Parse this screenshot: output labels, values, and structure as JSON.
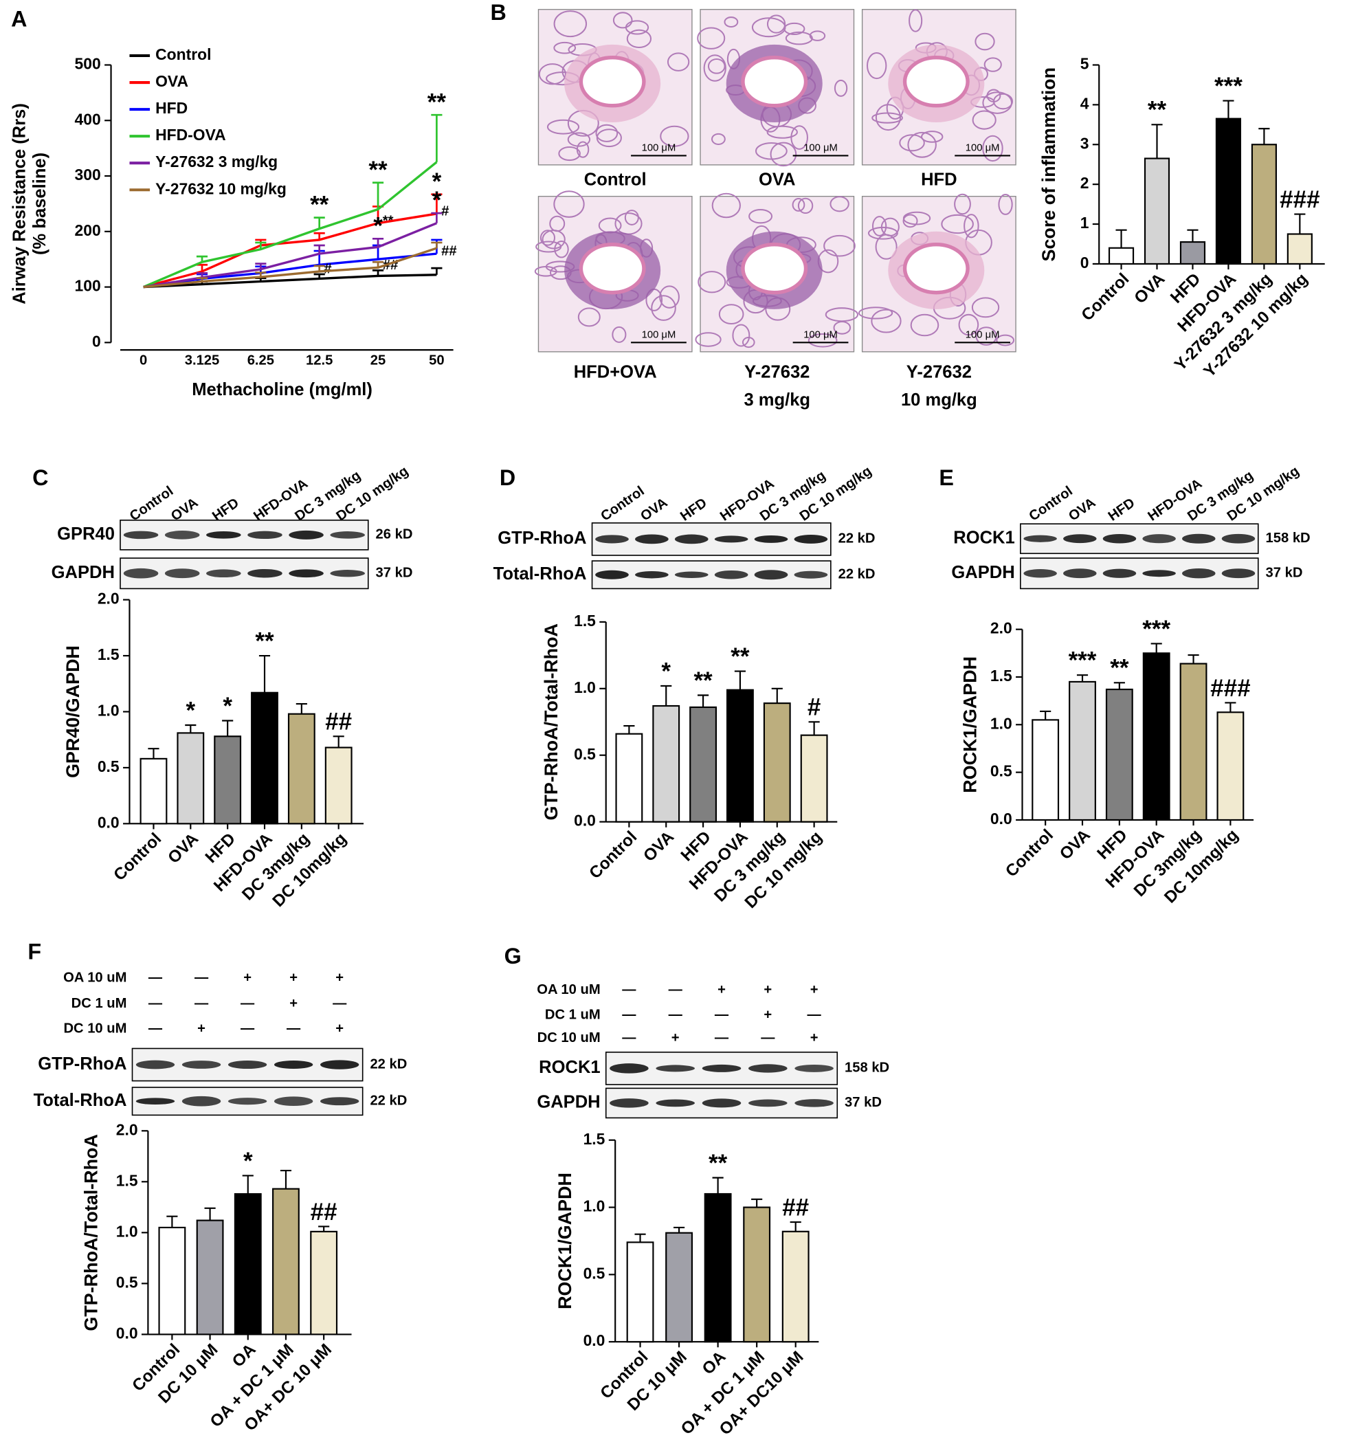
{
  "chart_data": [
    {
      "panel": "A",
      "type": "line",
      "categories": [
        "0",
        "3.125",
        "6.25",
        "12.5",
        "25",
        "50"
      ],
      "xlabel": "Methacholine (mg/ml)",
      "ylabel": [
        "Airway Resistance (Rrs)",
        "(% baseline)"
      ],
      "ylim": [
        0,
        500
      ],
      "yticks": [
        0,
        100,
        200,
        300,
        400,
        500
      ],
      "legend": "upper left",
      "series": [
        {
          "name": "Control",
          "color": "#000000",
          "values": [
            100,
            105,
            110,
            115,
            120,
            122
          ],
          "errors": [
            0,
            5,
            6,
            8,
            10,
            12
          ]
        },
        {
          "name": "OVA",
          "color": "#ff0000",
          "values": [
            100,
            128,
            175,
            185,
            215,
            232
          ],
          "errors": [
            0,
            12,
            10,
            12,
            30,
            35
          ],
          "sig": [
            null,
            null,
            null,
            null,
            null,
            "*"
          ],
          "sig_right": [
            null,
            null,
            null,
            null,
            "**",
            "#"
          ]
        },
        {
          "name": "HFD",
          "color": "#0000ff",
          "values": [
            100,
            115,
            125,
            140,
            150,
            160
          ],
          "errors": [
            0,
            8,
            12,
            25,
            25,
            25
          ],
          "sig_right": [
            null,
            null,
            null,
            null,
            null,
            "##"
          ]
        },
        {
          "name": "HFD-OVA",
          "color": "#2fc42f",
          "values": [
            100,
            145,
            168,
            205,
            240,
            325
          ],
          "errors": [
            0,
            10,
            12,
            20,
            48,
            85
          ],
          "sig": [
            null,
            null,
            null,
            "**",
            "**",
            "**"
          ]
        },
        {
          "name": "Y-27632  3 mg/kg",
          "color": "#7b1fa2",
          "values": [
            100,
            117,
            132,
            160,
            172,
            215
          ],
          "errors": [
            0,
            8,
            10,
            15,
            15,
            18
          ],
          "sig": [
            null,
            null,
            null,
            null,
            "*",
            "*"
          ]
        },
        {
          "name": "Y-27632 10 mg/kg",
          "color": "#9c6b30",
          "values": [
            100,
            110,
            118,
            128,
            135,
            170
          ],
          "errors": [
            0,
            6,
            8,
            10,
            10,
            10
          ],
          "sig_right": [
            null,
            null,
            null,
            "#",
            "##",
            null
          ]
        }
      ]
    },
    {
      "panel": "B",
      "type": "bar",
      "categories": [
        "Control",
        "OVA",
        "HFD",
        "HFD-OVA",
        "Y-27632 3 mg/kg",
        "Y-27632 10 mg/kg"
      ],
      "values": [
        0.4,
        2.65,
        0.55,
        3.65,
        3.0,
        0.75
      ],
      "errors": [
        0.45,
        0.85,
        0.3,
        0.45,
        0.4,
        0.5
      ],
      "sig": [
        null,
        "**",
        null,
        "***",
        null,
        "###"
      ],
      "colors": [
        "#ffffff",
        "#d4d4d4",
        "#9a9aa2",
        "#000000",
        "#bcae7e",
        "#f1ead0"
      ],
      "ylabel": "Score of inflammation",
      "ylim": [
        0,
        5
      ],
      "yticks": [
        0,
        1,
        2,
        3,
        4,
        5
      ],
      "histology": {
        "captions": [
          "Control",
          "OVA",
          "HFD",
          "HFD+OVA",
          [
            "Y-27632",
            "3 mg/kg"
          ],
          [
            "Y-27632",
            "10 mg/kg"
          ]
        ],
        "scale_bar": "100 μM"
      }
    },
    {
      "panel": "C",
      "type": "bar",
      "categories": [
        "Control",
        "OVA",
        "HFD",
        "HFD-OVA",
        "DC 3mg/kg",
        "DC 10mg/kg"
      ],
      "values": [
        0.58,
        0.81,
        0.78,
        1.17,
        0.98,
        0.68
      ],
      "errors": [
        0.09,
        0.07,
        0.14,
        0.33,
        0.09,
        0.1
      ],
      "sig": [
        null,
        "*",
        "*",
        "**",
        null,
        "##"
      ],
      "colors": [
        "#ffffff",
        "#d4d4d4",
        "#808080",
        "#000000",
        "#bcae7e",
        "#f1ead0"
      ],
      "ylabel": "GPR40/GAPDH",
      "ylim": [
        0,
        2
      ],
      "yticks": [
        {
          "value": 0,
          "label": "0.0"
        },
        0.5,
        {
          "value": 1,
          "label": "1.0"
        },
        1.5,
        {
          "value": 2,
          "label": "2.0"
        }
      ],
      "blot": {
        "lanes": [
          "Control",
          "OVA",
          "HFD",
          "HFD-OVA",
          "DC 3 mg/kg",
          "DC 10 mg/kg"
        ],
        "rows": [
          {
            "name": "GPR40",
            "size": "26 kD"
          },
          {
            "name": "GAPDH",
            "size": "37 kD"
          }
        ]
      }
    },
    {
      "panel": "D",
      "type": "bar",
      "categories": [
        "Control",
        "OVA",
        "HFD",
        "HFD-OVA",
        "DC 3 mg/kg",
        "DC 10 mg/kg"
      ],
      "values": [
        0.66,
        0.87,
        0.86,
        0.99,
        0.89,
        0.65
      ],
      "errors": [
        0.06,
        0.15,
        0.09,
        0.14,
        0.11,
        0.1
      ],
      "sig": [
        null,
        "*",
        "**",
        "**",
        null,
        "#"
      ],
      "colors": [
        "#ffffff",
        "#d4d4d4",
        "#808080",
        "#000000",
        "#bcae7e",
        "#f1ead0"
      ],
      "ylabel": "GTP-RhoA/Total-RhoA",
      "ylim": [
        0,
        1.5
      ],
      "yticks": [
        {
          "value": 0,
          "label": "0.0"
        },
        0.5,
        {
          "value": 1,
          "label": "1.0"
        },
        1.5
      ],
      "blot": {
        "lanes": [
          "Control",
          "OVA",
          "HFD",
          "HFD-OVA",
          "DC 3 mg/kg",
          "DC 10 mg/kg"
        ],
        "rows": [
          {
            "name": "GTP-RhoA",
            "size": "22 kD"
          },
          {
            "name": "Total-RhoA",
            "size": "22 kD"
          }
        ]
      }
    },
    {
      "panel": "E",
      "type": "bar",
      "categories": [
        "Control",
        "OVA",
        "HFD",
        "HFD-OVA",
        "DC 3mg/kg",
        "DC 10mg/kg"
      ],
      "values": [
        1.05,
        1.45,
        1.37,
        1.75,
        1.64,
        1.13
      ],
      "errors": [
        0.09,
        0.07,
        0.07,
        0.1,
        0.09,
        0.1
      ],
      "sig": [
        null,
        "***",
        "**",
        "***",
        null,
        "###"
      ],
      "colors": [
        "#ffffff",
        "#d4d4d4",
        "#808080",
        "#000000",
        "#bcae7e",
        "#f1ead0"
      ],
      "ylabel": "ROCK1/GAPDH",
      "ylim": [
        0,
        2
      ],
      "yticks": [
        {
          "value": 0,
          "label": "0.0"
        },
        0.5,
        {
          "value": 1,
          "label": "1.0"
        },
        1.5,
        {
          "value": 2,
          "label": "2.0"
        }
      ],
      "blot": {
        "lanes": [
          "Control",
          "OVA",
          "HFD",
          "HFD-OVA",
          "DC 3 mg/kg",
          "DC 10 mg/kg"
        ],
        "rows": [
          {
            "name": "ROCK1",
            "size": "158 kD"
          },
          {
            "name": "GAPDH",
            "size": "37 kD"
          }
        ]
      }
    },
    {
      "panel": "F",
      "type": "bar",
      "categories": [
        "Control",
        "DC 10 μM",
        "OA",
        "OA + DC 1 μM",
        "OA+ DC 10 μM"
      ],
      "values": [
        1.05,
        1.12,
        1.38,
        1.43,
        1.01
      ],
      "errors": [
        0.11,
        0.12,
        0.18,
        0.18,
        0.05
      ],
      "sig": [
        null,
        null,
        "*",
        null,
        "##"
      ],
      "colors": [
        "#ffffff",
        "#a0a0a8",
        "#000000",
        "#bcae7e",
        "#f1ead0"
      ],
      "ylabel": "GTP-RhoA/Total-RhoA",
      "ylim": [
        0,
        2
      ],
      "yticks": [
        {
          "value": 0,
          "label": "0.0"
        },
        0.5,
        {
          "value": 1,
          "label": "1.0"
        },
        1.5,
        {
          "value": 2,
          "label": "2.0"
        }
      ],
      "blot": {
        "treatments": [
          {
            "name": "OA 10 uM",
            "marks": [
              "—",
              "—",
              "+",
              "+",
              "+"
            ]
          },
          {
            "name": "DC 1 uM",
            "marks": [
              "—",
              "—",
              "—",
              "+",
              "—"
            ]
          },
          {
            "name": "DC 10 uM",
            "marks": [
              "—",
              "+",
              "—",
              "—",
              "+"
            ]
          }
        ],
        "rows": [
          {
            "name": "GTP-RhoA",
            "size": "22 kD"
          },
          {
            "name": "Total-RhoA",
            "size": "22 kD"
          }
        ]
      }
    },
    {
      "panel": "G",
      "type": "bar",
      "categories": [
        "Control",
        "DC 10 μM",
        "OA",
        "OA + DC 1 μM",
        "OA+ DC10 μM"
      ],
      "values": [
        0.74,
        0.81,
        1.1,
        1.0,
        0.82
      ],
      "errors": [
        0.06,
        0.04,
        0.12,
        0.06,
        0.07
      ],
      "sig": [
        null,
        null,
        "**",
        null,
        "##"
      ],
      "colors": [
        "#ffffff",
        "#a0a0a8",
        "#000000",
        "#bcae7e",
        "#f1ead0"
      ],
      "ylabel": "ROCK1/GAPDH",
      "ylim": [
        0,
        1.5
      ],
      "yticks": [
        {
          "value": 0,
          "label": "0.0"
        },
        0.5,
        {
          "value": 1,
          "label": "1.0"
        },
        1.5
      ],
      "blot": {
        "treatments": [
          {
            "name": "OA 10 uM",
            "marks": [
              "—",
              "—",
              "+",
              "+",
              "+"
            ]
          },
          {
            "name": "DC 1 uM",
            "marks": [
              "—",
              "—",
              "—",
              "+",
              "—"
            ]
          },
          {
            "name": "DC 10 uM",
            "marks": [
              "—",
              "+",
              "—",
              "—",
              "+"
            ]
          }
        ],
        "rows": [
          {
            "name": "ROCK1",
            "size": "158 kD"
          },
          {
            "name": "GAPDH",
            "size": "37 kD"
          }
        ]
      }
    }
  ]
}
